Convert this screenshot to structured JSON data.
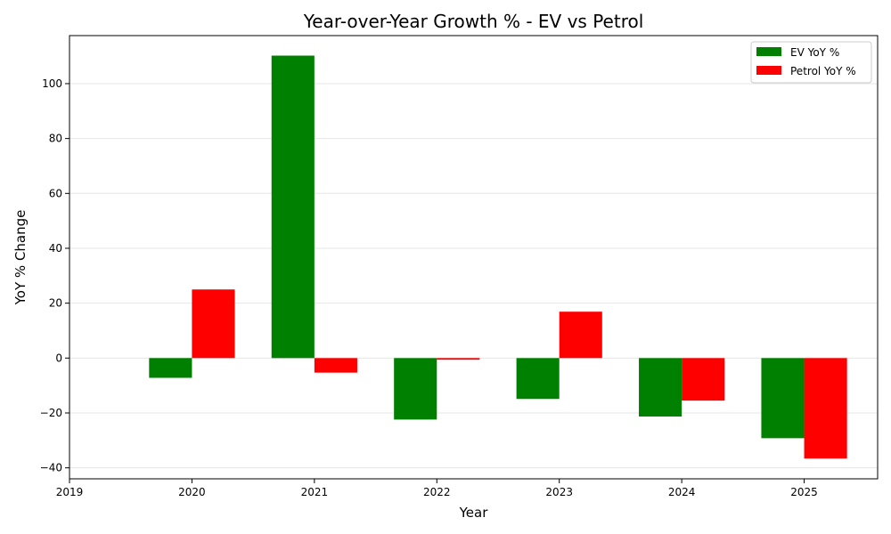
{
  "chart_data": {
    "type": "bar",
    "title": "Year-over-Year Growth % - EV vs Petrol",
    "xlabel": "Year",
    "ylabel": "YoY % Change",
    "x_ticks": [
      "2019",
      "2020",
      "2021",
      "2022",
      "2023",
      "2024",
      "2025"
    ],
    "y_ticks": [
      -40,
      -20,
      0,
      20,
      40,
      60,
      80,
      100
    ],
    "y_tick_labels": [
      "−40",
      "−20",
      "0",
      "20",
      "40",
      "60",
      "80",
      "100"
    ],
    "categories": [
      "2020",
      "2021",
      "2022",
      "2023",
      "2024",
      "2025"
    ],
    "series": [
      {
        "name": "EV YoY %",
        "color": "#008000",
        "values": [
          -7.2,
          110.2,
          -22.4,
          -14.9,
          -21.3,
          -29.2
        ]
      },
      {
        "name": "Petrol YoY %",
        "color": "#ff0000",
        "values": [
          25.0,
          -5.3,
          -0.6,
          16.9,
          -15.5,
          -36.6
        ]
      }
    ],
    "xlim": [
      2019,
      2025.6
    ],
    "ylim": [
      -44,
      117.5
    ],
    "grid": "y",
    "legend": "top-right"
  }
}
